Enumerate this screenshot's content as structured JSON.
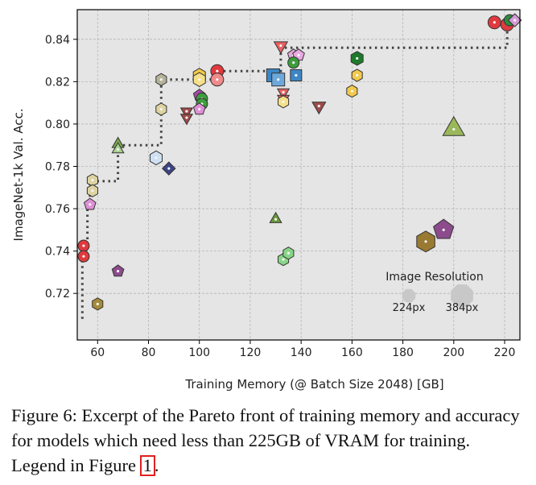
{
  "chart_data": {
    "type": "scatter",
    "xlabel": "Training Memory (@ Batch Size 2048) [GB]",
    "ylabel": "ImageNet-1k Val. Acc.",
    "xlim": [
      52,
      226
    ],
    "ylim": [
      0.698,
      0.854
    ],
    "xticks": [
      60,
      80,
      100,
      120,
      140,
      160,
      180,
      200,
      220
    ],
    "yticks": [
      0.72,
      0.74,
      0.76,
      0.78,
      0.8,
      0.82,
      0.84
    ],
    "xtick_labels": [
      "60",
      "80",
      "100",
      "120",
      "140",
      "160",
      "180",
      "200",
      "220"
    ],
    "ytick_labels": [
      "0.72",
      "0.74",
      "0.76",
      "0.78",
      "0.80",
      "0.82",
      "0.84"
    ],
    "grid": true,
    "pareto_front": [
      [
        54,
        0.708
      ],
      [
        54,
        0.743
      ],
      [
        56,
        0.743
      ],
      [
        56,
        0.762
      ],
      [
        57,
        0.762
      ],
      [
        57,
        0.773
      ],
      [
        68,
        0.773
      ],
      [
        68,
        0.79
      ],
      [
        85,
        0.79
      ],
      [
        85,
        0.807
      ],
      [
        85,
        0.821
      ],
      [
        107,
        0.821
      ],
      [
        107,
        0.825
      ],
      [
        132,
        0.825
      ],
      [
        132,
        0.836
      ],
      [
        221,
        0.836
      ],
      [
        221,
        0.849
      ]
    ],
    "legend": {
      "title": "Image Resolution",
      "entries": [
        {
          "label": "224px",
          "size": "small"
        },
        {
          "label": "384px",
          "size": "large"
        }
      ]
    },
    "points": [
      {
        "x": 54.5,
        "y": 0.7425,
        "shape": "circle",
        "color": "#e03a3e",
        "size": 7
      },
      {
        "x": 54.5,
        "y": 0.7375,
        "shape": "circle",
        "color": "#e03a3e",
        "size": 7
      },
      {
        "x": 57,
        "y": 0.762,
        "shape": "pentagon",
        "color": "#de8fd6",
        "size": 7
      },
      {
        "x": 58,
        "y": 0.7735,
        "shape": "hexagon",
        "color": "#ddd3a2",
        "size": 7
      },
      {
        "x": 58,
        "y": 0.7685,
        "shape": "hexagon",
        "color": "#ddd3a2",
        "size": 7
      },
      {
        "x": 60,
        "y": 0.715,
        "shape": "hexagon",
        "color": "#a68a3a",
        "size": 7
      },
      {
        "x": 68,
        "y": 0.7305,
        "shape": "pentagon",
        "color": "#8c4b8c",
        "size": 7
      },
      {
        "x": 68,
        "y": 0.7905,
        "shape": "triangle-up",
        "color": "#7aa84a",
        "size": 7
      },
      {
        "x": 68,
        "y": 0.788,
        "shape": "triangle-up",
        "color": "#a9cf8e",
        "size": 7
      },
      {
        "x": 83,
        "y": 0.784,
        "shape": "hexagon",
        "color": "#cfe0f2",
        "size": 8
      },
      {
        "x": 85,
        "y": 0.821,
        "shape": "hexagon",
        "color": "#b5b39a",
        "size": 7
      },
      {
        "x": 85,
        "y": 0.807,
        "shape": "hexagon",
        "color": "#ddd3a2",
        "size": 7
      },
      {
        "x": 88,
        "y": 0.779,
        "shape": "diamond",
        "color": "#3d4485",
        "size": 7
      },
      {
        "x": 95,
        "y": 0.806,
        "shape": "triangle-down",
        "color": "#a14a4a",
        "size": 7
      },
      {
        "x": 95,
        "y": 0.803,
        "shape": "triangle-down",
        "color": "#a14a4a",
        "size": 7
      },
      {
        "x": 100,
        "y": 0.823,
        "shape": "hexagon",
        "color": "#f2c94c",
        "size": 8
      },
      {
        "x": 100,
        "y": 0.821,
        "shape": "hexagon",
        "color": "#f5e08a",
        "size": 8
      },
      {
        "x": 100,
        "y": 0.8135,
        "shape": "pentagon",
        "color": "#a84aa8",
        "size": 7
      },
      {
        "x": 101,
        "y": 0.812,
        "shape": "circle",
        "color": "#3c9e3c",
        "size": 7
      },
      {
        "x": 101,
        "y": 0.8095,
        "shape": "circle",
        "color": "#3c9e3c",
        "size": 7
      },
      {
        "x": 100,
        "y": 0.807,
        "shape": "pentagon",
        "color": "#de8fd6",
        "size": 7
      },
      {
        "x": 107,
        "y": 0.825,
        "shape": "circle",
        "color": "#e03a3e",
        "size": 8
      },
      {
        "x": 107,
        "y": 0.821,
        "shape": "circle",
        "color": "#f08a8a",
        "size": 8
      },
      {
        "x": 129,
        "y": 0.823,
        "shape": "square",
        "color": "#3d86c6",
        "size": 8
      },
      {
        "x": 131,
        "y": 0.821,
        "shape": "square",
        "color": "#6da8dc",
        "size": 8
      },
      {
        "x": 132,
        "y": 0.837,
        "shape": "triangle-down",
        "color": "#e86060",
        "size": 8
      },
      {
        "x": 133,
        "y": 0.815,
        "shape": "triangle-down",
        "color": "#e86060",
        "size": 7
      },
      {
        "x": 133,
        "y": 0.812,
        "shape": "triangle-down",
        "color": "#e86060",
        "size": 7
      },
      {
        "x": 133,
        "y": 0.8105,
        "shape": "hexagon",
        "color": "#f5e08a",
        "size": 7
      },
      {
        "x": 137,
        "y": 0.8325,
        "shape": "pentagon",
        "color": "#e8a8e0",
        "size": 7
      },
      {
        "x": 139,
        "y": 0.8325,
        "shape": "pentagon",
        "color": "#e8a8e0",
        "size": 7
      },
      {
        "x": 137,
        "y": 0.829,
        "shape": "circle",
        "color": "#3c9e3c",
        "size": 7
      },
      {
        "x": 138,
        "y": 0.823,
        "shape": "square",
        "color": "#3d86c6",
        "size": 7
      },
      {
        "x": 147,
        "y": 0.8085,
        "shape": "triangle-down",
        "color": "#a14a4a",
        "size": 8
      },
      {
        "x": 130,
        "y": 0.755,
        "shape": "triangle-up",
        "color": "#6a9a3a",
        "size": 7
      },
      {
        "x": 133,
        "y": 0.736,
        "shape": "hexagon",
        "color": "#88d488",
        "size": 7
      },
      {
        "x": 135,
        "y": 0.739,
        "shape": "hexagon",
        "color": "#88d488",
        "size": 7
      },
      {
        "x": 160,
        "y": 0.8155,
        "shape": "hexagon",
        "color": "#f2c94c",
        "size": 7
      },
      {
        "x": 162,
        "y": 0.823,
        "shape": "hexagon",
        "color": "#f2c94c",
        "size": 7
      },
      {
        "x": 162,
        "y": 0.831,
        "shape": "hexagon",
        "color": "#1e7a2a",
        "size": 8
      },
      {
        "x": 189,
        "y": 0.7445,
        "shape": "hexagon",
        "color": "#9a7a32",
        "size": 12
      },
      {
        "x": 196,
        "y": 0.75,
        "shape": "pentagon",
        "color": "#8c4b8c",
        "size": 12
      },
      {
        "x": 200,
        "y": 0.7975,
        "shape": "triangle-up",
        "color": "#9ab85a",
        "size": 13
      },
      {
        "x": 216,
        "y": 0.848,
        "shape": "circle",
        "color": "#e03a3e",
        "size": 8
      },
      {
        "x": 221,
        "y": 0.847,
        "shape": "circle",
        "color": "#e03a3e",
        "size": 8
      },
      {
        "x": 222,
        "y": 0.849,
        "shape": "circle",
        "color": "#2e8a3e",
        "size": 7
      },
      {
        "x": 224,
        "y": 0.849,
        "shape": "diamond",
        "color": "#d49ad4",
        "size": 7
      }
    ]
  },
  "caption": {
    "text": "Figure 6: Excerpt of the Pareto front of training memory and accuracy for models which need less than 225GB of VRAM for training. Legend in Figure ",
    "ref": "1",
    "end": "."
  }
}
